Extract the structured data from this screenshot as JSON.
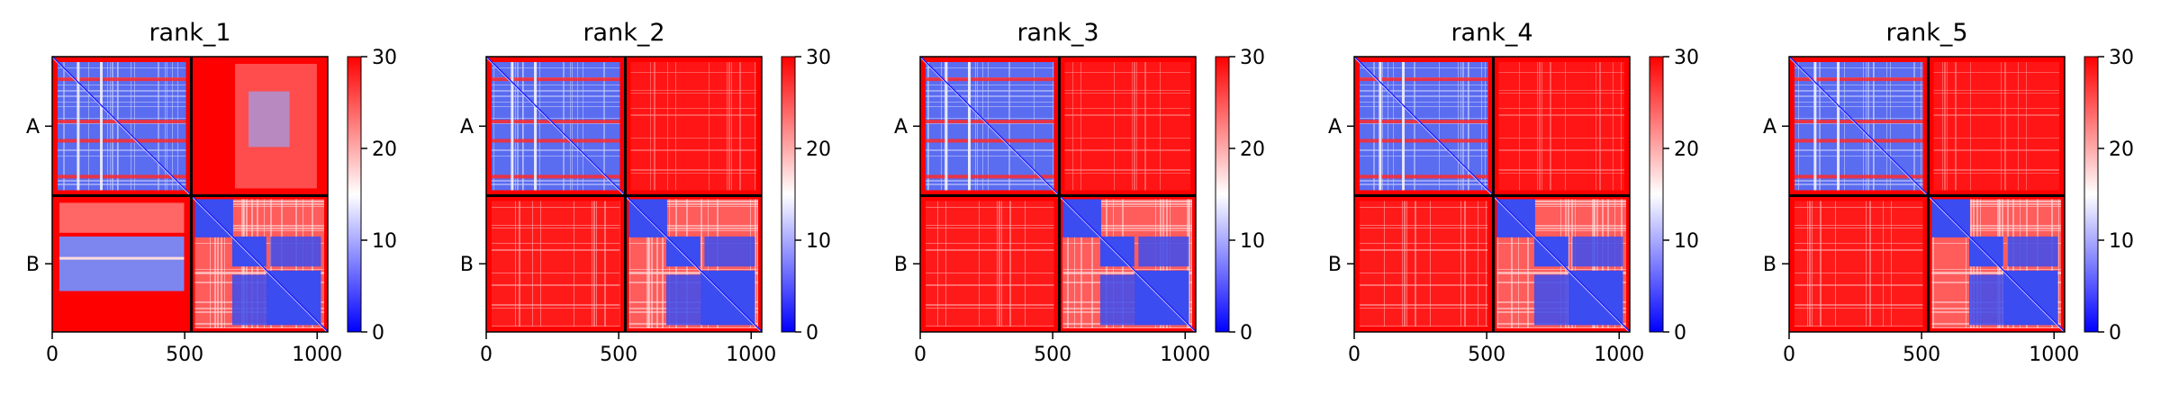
{
  "chart_data": {
    "type": "heatmap",
    "colorbar": {
      "vmin": 0,
      "vmax": 30,
      "ticks": [
        "0",
        "10",
        "20",
        "30"
      ],
      "colors": {
        "low": "#0000ff",
        "mid": "#ffffff",
        "high": "#ff0000"
      }
    },
    "x_ticks": [
      "0",
      "500",
      "1000"
    ],
    "x_range": [
      0,
      1040
    ],
    "chain_boundary": 525,
    "chain_labels": [
      "A",
      "B"
    ],
    "panels": [
      {
        "title": "rank_1",
        "inter_chain_error": "mixed"
      },
      {
        "title": "rank_2",
        "inter_chain_error": "high"
      },
      {
        "title": "rank_3",
        "inter_chain_error": "high"
      },
      {
        "title": "rank_4",
        "inter_chain_error": "high"
      },
      {
        "title": "rank_5",
        "inter_chain_error": "high"
      }
    ]
  }
}
